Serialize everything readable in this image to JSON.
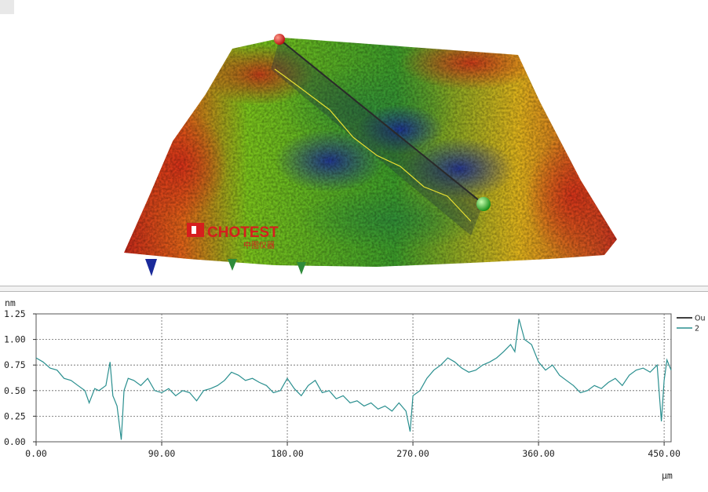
{
  "watermark": {
    "text": "CHOTEST",
    "subtext": "中图仪器"
  },
  "surface_view": {
    "colormap": [
      "#1a2a9a",
      "#2e8b3a",
      "#6ac21a",
      "#e6c21a",
      "#e04a14",
      "#b01818"
    ],
    "profile_line": {
      "start_marker": "red-sphere",
      "end_marker": "green-sphere"
    }
  },
  "chart_data": {
    "type": "line",
    "ylabel": "nm",
    "xlabel": "µm",
    "xlim": [
      0,
      455
    ],
    "ylim": [
      0,
      1.25
    ],
    "x_ticks": [
      "0.00",
      "90.00",
      "180.00",
      "270.00",
      "360.00",
      "450.00"
    ],
    "x_tick_values": [
      0,
      90,
      180,
      270,
      360,
      450
    ],
    "y_ticks": [
      "0.00",
      "0.25",
      "0.50",
      "0.75",
      "1.00",
      "1.25"
    ],
    "y_tick_values": [
      0,
      0.25,
      0.5,
      0.75,
      1.0,
      1.25
    ],
    "grid": true,
    "legend": [
      {
        "name": "Ou",
        "color": "#000000"
      },
      {
        "name": "2",
        "color": "#2a8f8f"
      }
    ],
    "series": [
      {
        "name": "2",
        "color": "#2a8f8f",
        "x": [
          0,
          5,
          10,
          15,
          20,
          25,
          30,
          35,
          38,
          42,
          45,
          50,
          53,
          55,
          58,
          61,
          63,
          66,
          70,
          75,
          80,
          85,
          90,
          95,
          100,
          105,
          110,
          115,
          120,
          125,
          130,
          135,
          140,
          145,
          150,
          155,
          160,
          165,
          170,
          175,
          180,
          185,
          190,
          195,
          200,
          205,
          210,
          215,
          220,
          225,
          230,
          235,
          240,
          245,
          250,
          255,
          260,
          265,
          268,
          270,
          275,
          280,
          285,
          290,
          295,
          300,
          305,
          310,
          315,
          320,
          325,
          330,
          335,
          340,
          343,
          346,
          350,
          355,
          360,
          365,
          370,
          375,
          380,
          385,
          390,
          395,
          400,
          405,
          410,
          415,
          420,
          425,
          430,
          435,
          440,
          445,
          448,
          450,
          452,
          455
        ],
        "values": [
          0.82,
          0.78,
          0.72,
          0.7,
          0.62,
          0.6,
          0.55,
          0.5,
          0.38,
          0.52,
          0.5,
          0.55,
          0.78,
          0.45,
          0.35,
          0.02,
          0.5,
          0.62,
          0.6,
          0.55,
          0.62,
          0.5,
          0.48,
          0.52,
          0.45,
          0.5,
          0.48,
          0.4,
          0.5,
          0.52,
          0.55,
          0.6,
          0.68,
          0.65,
          0.6,
          0.62,
          0.58,
          0.55,
          0.48,
          0.5,
          0.62,
          0.52,
          0.45,
          0.55,
          0.6,
          0.48,
          0.5,
          0.42,
          0.45,
          0.38,
          0.4,
          0.35,
          0.38,
          0.32,
          0.35,
          0.3,
          0.38,
          0.3,
          0.1,
          0.45,
          0.5,
          0.62,
          0.7,
          0.75,
          0.82,
          0.78,
          0.72,
          0.68,
          0.7,
          0.75,
          0.78,
          0.82,
          0.88,
          0.95,
          0.88,
          1.2,
          1.0,
          0.95,
          0.78,
          0.7,
          0.75,
          0.65,
          0.6,
          0.55,
          0.48,
          0.5,
          0.55,
          0.52,
          0.58,
          0.62,
          0.55,
          0.65,
          0.7,
          0.72,
          0.68,
          0.75,
          0.2,
          0.6,
          0.8,
          0.7
        ]
      }
    ]
  }
}
